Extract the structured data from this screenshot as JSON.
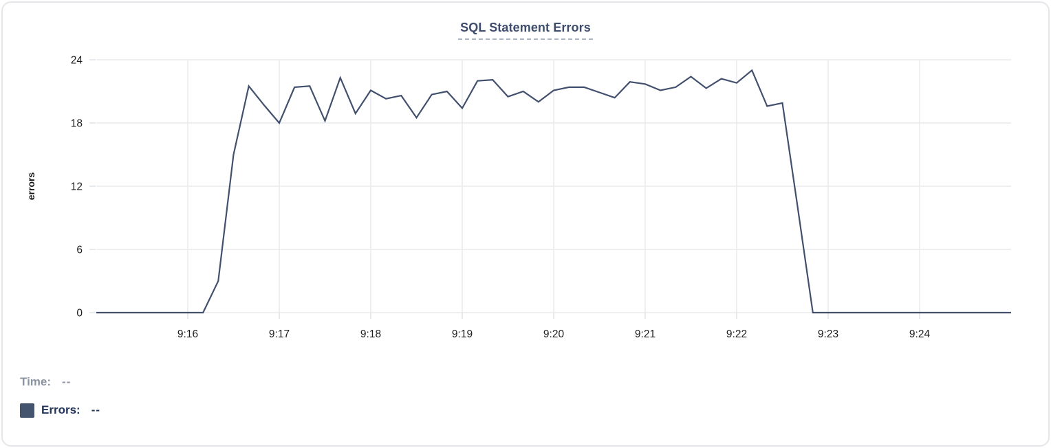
{
  "card": {
    "title": "SQL Statement Errors"
  },
  "legend": {
    "time_label": "Time:",
    "time_value": "--",
    "series_label": "Errors:",
    "series_value": "--"
  },
  "colors": {
    "series_line": "#42506e",
    "legend_swatch": "#44536e",
    "title_text": "#3e4d6d",
    "title_underline": "#a9b2c0",
    "legend_time_text": "#8a93a2",
    "legend_errors_text": "#22345a",
    "grid_line": "#e9eaec",
    "axis_tick": "#dfe2e6",
    "axis_label_text": "#1d1d1f",
    "card_border": "#e4e6ea"
  },
  "chart_data": {
    "type": "line",
    "title": "SQL Statement Errors",
    "xlabel": "",
    "ylabel": "errors",
    "ylim": [
      0,
      24
    ],
    "y_ticks": [
      0,
      6,
      12,
      18,
      24
    ],
    "x_ticks": [
      "9:16",
      "9:17",
      "9:18",
      "9:19",
      "9:20",
      "9:21",
      "9:22",
      "9:23",
      "9:24"
    ],
    "x_range": [
      "9:15:00",
      "9:25:00"
    ],
    "grid": true,
    "legend_position": "bottom-left",
    "series": [
      {
        "name": "Errors",
        "color": "#42506e",
        "x": [
          "9:15:00",
          "9:15:10",
          "9:15:20",
          "9:15:30",
          "9:15:40",
          "9:15:50",
          "9:16:00",
          "9:16:10",
          "9:16:20",
          "9:16:30",
          "9:16:40",
          "9:16:50",
          "9:17:00",
          "9:17:10",
          "9:17:20",
          "9:17:30",
          "9:17:40",
          "9:17:50",
          "9:18:00",
          "9:18:10",
          "9:18:20",
          "9:18:30",
          "9:18:40",
          "9:18:50",
          "9:19:00",
          "9:19:10",
          "9:19:20",
          "9:19:30",
          "9:19:40",
          "9:19:50",
          "9:20:00",
          "9:20:10",
          "9:20:20",
          "9:20:30",
          "9:20:40",
          "9:20:50",
          "9:21:00",
          "9:21:10",
          "9:21:20",
          "9:21:30",
          "9:21:40",
          "9:21:50",
          "9:22:00",
          "9:22:10",
          "9:22:20",
          "9:22:30",
          "9:22:40",
          "9:22:50",
          "9:23:00",
          "9:23:10",
          "9:23:20",
          "9:23:30",
          "9:23:40",
          "9:23:50",
          "9:24:00",
          "9:24:10",
          "9:24:20",
          "9:24:30",
          "9:24:40",
          "9:24:50",
          "9:25:00"
        ],
        "values": [
          0,
          0,
          0,
          0,
          0,
          0,
          0,
          0,
          3,
          15,
          21.5,
          19.7,
          18,
          21.4,
          21.5,
          18.2,
          22.3,
          18.9,
          21.1,
          20.3,
          20.6,
          18.5,
          20.7,
          21,
          19.4,
          22,
          22.1,
          20.5,
          21,
          20,
          21.1,
          21.4,
          21.4,
          20.9,
          20.4,
          21.9,
          21.7,
          21.1,
          21.4,
          22.4,
          21.3,
          22.2,
          21.8,
          23,
          19.6,
          19.9,
          10,
          0,
          0,
          0,
          0,
          0,
          0,
          0,
          0,
          0,
          0,
          0,
          0,
          0,
          0
        ]
      }
    ]
  }
}
